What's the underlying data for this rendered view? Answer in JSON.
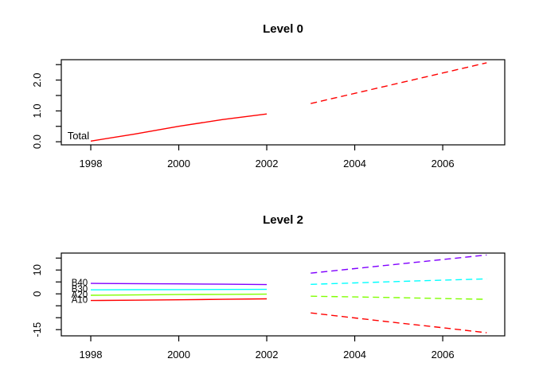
{
  "figure": {
    "background": "#ffffff",
    "axis_color": "#000000",
    "text_color": "#000000"
  },
  "chart_data": [
    {
      "type": "line",
      "title": "Level 0",
      "xlabel": "",
      "ylabel": "",
      "grid": false,
      "legend_position": "none",
      "xlim": [
        1997.33,
        2007.41
      ],
      "ylim": [
        -0.1,
        2.66
      ],
      "xticks": [
        {
          "v": 1998,
          "label": "1998"
        },
        {
          "v": 2000,
          "label": "2000"
        },
        {
          "v": 2002,
          "label": "2002"
        },
        {
          "v": 2004,
          "label": "2004"
        },
        {
          "v": 2006,
          "label": "2006"
        }
      ],
      "yticks": [
        {
          "v": 0.0,
          "label": "0.0"
        },
        {
          "v": 0.5,
          "label": ""
        },
        {
          "v": 1.0,
          "label": "1.0"
        },
        {
          "v": 1.5,
          "label": ""
        },
        {
          "v": 2.0,
          "label": "2.0"
        },
        {
          "v": 2.5,
          "label": ""
        }
      ],
      "series": [
        {
          "name": "Total",
          "color": "#ff0000",
          "label": {
            "text": "Total",
            "x": 1997.47,
            "y": 0.17
          },
          "historical": {
            "x": [
              1998,
              1999,
              2000,
              2001,
              2002
            ],
            "y": [
              0.02,
              0.25,
              0.5,
              0.72,
              0.9
            ]
          },
          "forecast": {
            "x": [
              2003,
              2004,
              2005,
              2006,
              2007
            ],
            "y": [
              1.24,
              1.57,
              1.9,
              2.23,
              2.56
            ]
          }
        }
      ]
    },
    {
      "type": "line",
      "title": "Level 2",
      "xlabel": "",
      "ylabel": "",
      "grid": false,
      "legend_position": "none",
      "xlim": [
        1997.33,
        2007.41
      ],
      "ylim": [
        -17.6,
        17.1
      ],
      "xticks": [
        {
          "v": 1998,
          "label": "1998"
        },
        {
          "v": 2000,
          "label": "2000"
        },
        {
          "v": 2002,
          "label": "2002"
        },
        {
          "v": 2004,
          "label": "2004"
        },
        {
          "v": 2006,
          "label": "2006"
        }
      ],
      "yticks": [
        {
          "v": -15,
          "label": "-15"
        },
        {
          "v": -10,
          "label": ""
        },
        {
          "v": -5,
          "label": ""
        },
        {
          "v": 0,
          "label": "0"
        },
        {
          "v": 5,
          "label": ""
        },
        {
          "v": 10,
          "label": "10"
        },
        {
          "v": 15,
          "label": ""
        }
      ],
      "series": [
        {
          "name": "A10",
          "color": "#ff0000",
          "label": {
            "text": "A10",
            "x": 1997.56,
            "y": -2.8
          },
          "historical": {
            "x": [
              1998,
              1999,
              2000,
              2001,
              2002
            ],
            "y": [
              -2.8,
              -2.65,
              -2.5,
              -2.3,
              -2.1
            ]
          },
          "forecast": {
            "x": [
              2003,
              2004,
              2005,
              2006,
              2007
            ],
            "y": [
              -8.0,
              -10.1,
              -12.2,
              -14.2,
              -16.3
            ]
          }
        },
        {
          "name": "A20",
          "color": "#80ff00",
          "label": {
            "text": "A20",
            "x": 1997.56,
            "y": -0.6
          },
          "historical": {
            "x": [
              1998,
              1999,
              2000,
              2001,
              2002
            ],
            "y": [
              -0.6,
              -0.45,
              -0.3,
              -0.2,
              -0.1
            ]
          },
          "forecast": {
            "x": [
              2003,
              2004,
              2005,
              2006,
              2007
            ],
            "y": [
              -1.0,
              -1.3,
              -1.6,
              -1.95,
              -2.3
            ]
          }
        },
        {
          "name": "B30",
          "color": "#00ffff",
          "label": {
            "text": "B30",
            "x": 1997.56,
            "y": 1.7
          },
          "historical": {
            "x": [
              1998,
              1999,
              2000,
              2001,
              2002
            ],
            "y": [
              1.7,
              1.75,
              1.8,
              1.85,
              1.9
            ]
          },
          "forecast": {
            "x": [
              2003,
              2004,
              2005,
              2006,
              2007
            ],
            "y": [
              4.0,
              4.6,
              5.2,
              5.75,
              6.3
            ]
          }
        },
        {
          "name": "B40",
          "color": "#8000ff",
          "label": {
            "text": "B40",
            "x": 1997.56,
            "y": 4.4
          },
          "historical": {
            "x": [
              1998,
              1999,
              2000,
              2001,
              2002
            ],
            "y": [
              4.4,
              4.3,
              4.2,
              4.05,
              3.9
            ]
          },
          "forecast": {
            "x": [
              2003,
              2004,
              2005,
              2006,
              2007
            ],
            "y": [
              8.7,
              10.6,
              12.5,
              14.4,
              16.3
            ]
          }
        }
      ]
    }
  ]
}
